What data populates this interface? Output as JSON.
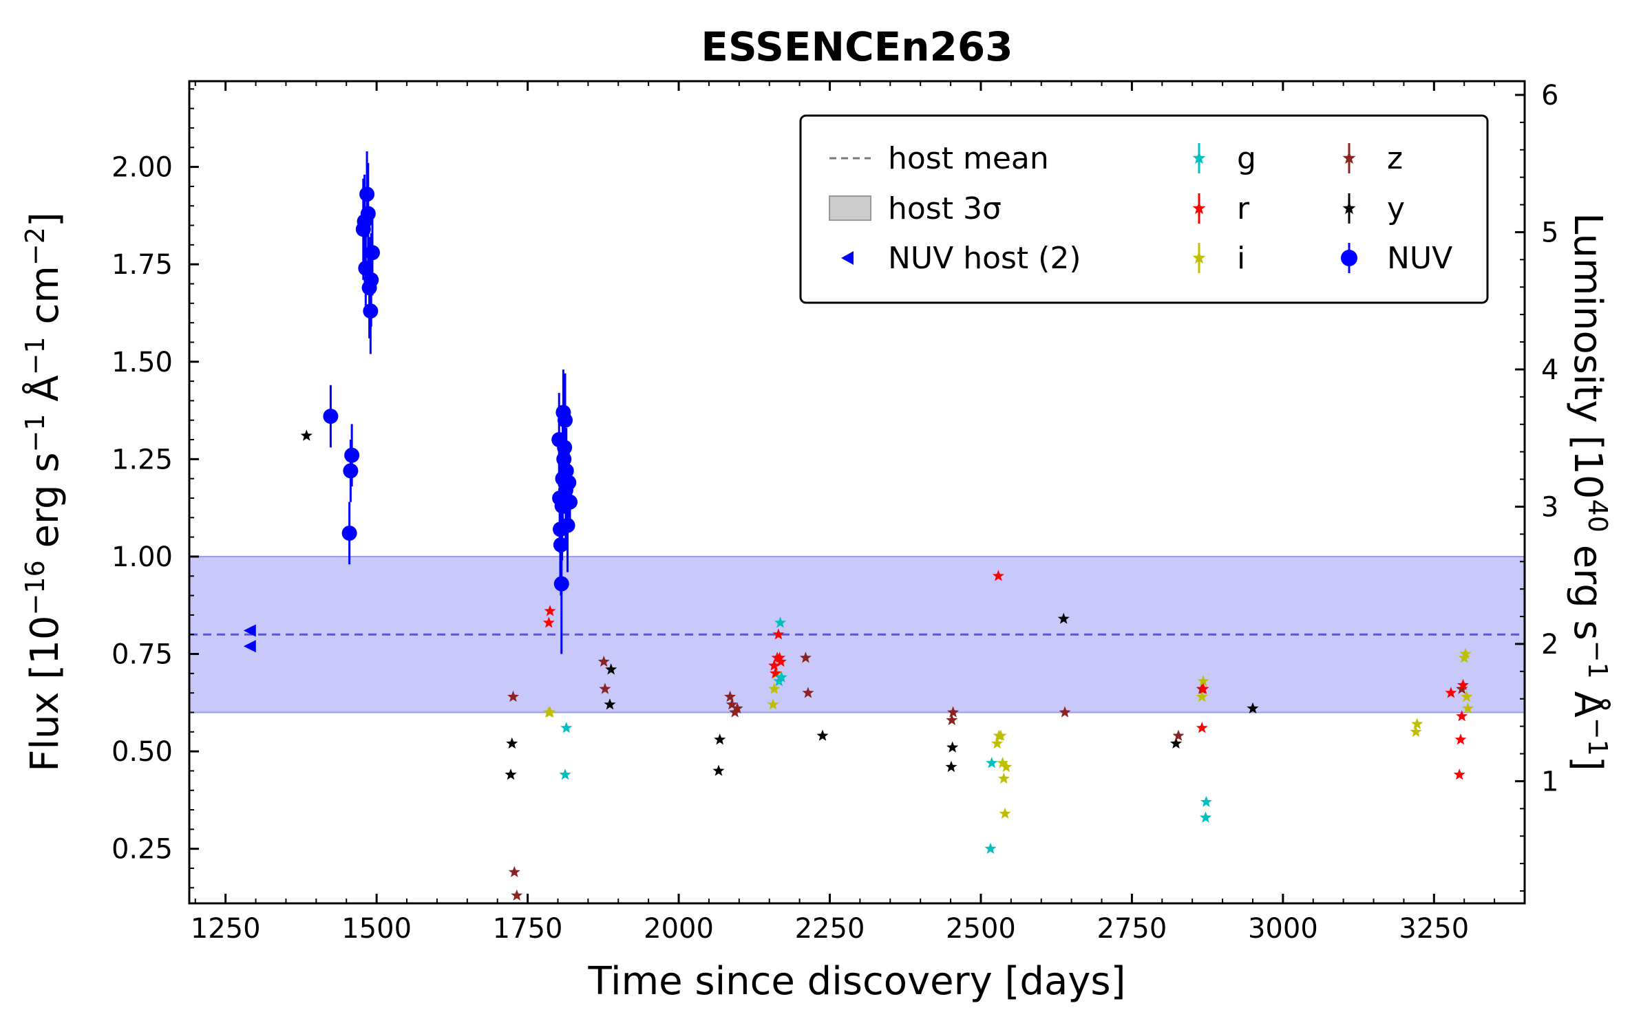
{
  "chart_data": {
    "type": "scatter",
    "title": "ESSENCEn263",
    "xlabel": "Time since discovery [days]",
    "ylabel": "Flux [10^-16 erg s^-1 Å^-1 cm^-2]",
    "ylabel_right": "Luminosity [10^40 erg s^-1 Å^-1]",
    "xlim": [
      1190,
      3400
    ],
    "ylim": [
      0.11,
      2.22
    ],
    "ylim_right": [
      0.11,
      6.1
    ],
    "x_ticks": [
      "1250",
      "1500",
      "1750",
      "2000",
      "2250",
      "2500",
      "2750",
      "3000",
      "3250"
    ],
    "y_ticks": [
      "0.25",
      "0.50",
      "0.75",
      "1.00",
      "1.25",
      "1.50",
      "1.75",
      "2.00"
    ],
    "y_ticks_right": [
      "1",
      "2",
      "3",
      "4",
      "5",
      "6"
    ],
    "grid": false,
    "legend_position": "top-right",
    "host": {
      "mean": 0.8,
      "band": [
        0.6,
        1.0
      ],
      "band_color": "#c8c8fa",
      "line_color": "#5555e6"
    },
    "legend": {
      "host_mean": "host mean",
      "host_band": "host 3σ",
      "nuv_host": "NUV host (2)",
      "g": "g",
      "r": "r",
      "i": "i",
      "z": "z",
      "y": "y",
      "nuv": "NUV"
    },
    "series": [
      {
        "name": "NUV host (2)",
        "color": "#0000ff",
        "marker": "triangle-left",
        "x": [
          1290,
          1290
        ],
        "y": [
          0.81,
          0.77
        ]
      },
      {
        "name": "NUV",
        "color": "#0000ff",
        "marker": "circle",
        "x": [
          1424,
          1455,
          1457,
          1459,
          1478,
          1480,
          1482,
          1484,
          1486,
          1488,
          1490,
          1491,
          1493,
          1802,
          1803,
          1804,
          1805,
          1806,
          1807,
          1808,
          1809,
          1810,
          1811,
          1812,
          1813,
          1814,
          1815,
          1816,
          1818,
          1820
        ],
        "y": [
          1.36,
          1.06,
          1.22,
          1.26,
          1.84,
          1.86,
          1.74,
          1.93,
          1.88,
          1.69,
          1.63,
          1.71,
          1.78,
          1.3,
          1.15,
          1.07,
          1.03,
          0.93,
          1.13,
          1.2,
          1.37,
          1.25,
          1.28,
          1.35,
          1.17,
          1.22,
          1.14,
          1.08,
          1.19,
          1.14
        ],
        "yerr": [
          0.08,
          0.08,
          0.08,
          0.08,
          0.13,
          0.12,
          0.12,
          0.11,
          0.13,
          0.13,
          0.11,
          0.12,
          0.11,
          0.12,
          0.14,
          0.14,
          0.13,
          0.18,
          0.14,
          0.14,
          0.11,
          0.14,
          0.12,
          0.12,
          0.14,
          0.11,
          0.12,
          0.12,
          0.09,
          0.07
        ]
      },
      {
        "name": "g",
        "color": "#00bfbf",
        "marker": "star",
        "x": [
          1812,
          1814,
          2166,
          2168,
          2170,
          2516,
          2518,
          2872,
          2873
        ],
        "y": [
          0.44,
          0.56,
          0.68,
          0.83,
          0.69,
          0.25,
          0.47,
          0.33,
          0.37
        ]
      },
      {
        "name": "r",
        "color": "#ff0000",
        "marker": "star",
        "x": [
          1785,
          1787,
          2158,
          2160,
          2163,
          2165,
          2167,
          2169,
          2529,
          2866,
          2868,
          3278,
          3292,
          3294,
          3296,
          3298
        ],
        "y": [
          0.83,
          0.86,
          0.72,
          0.7,
          0.74,
          0.8,
          0.74,
          0.73,
          0.95,
          0.56,
          0.66,
          0.65,
          0.44,
          0.53,
          0.59,
          0.67
        ]
      },
      {
        "name": "i",
        "color": "#bfbf00",
        "marker": "star",
        "x": [
          1785,
          1787,
          2156,
          2158,
          2162,
          2527,
          2530,
          2533,
          2536,
          2538,
          2540,
          2542,
          2866,
          2868,
          3220,
          3222,
          3300,
          3302,
          3304,
          3306
        ],
        "y": [
          0.6,
          0.6,
          0.62,
          0.66,
          0.7,
          0.52,
          0.54,
          0.54,
          0.47,
          0.43,
          0.34,
          0.46,
          0.64,
          0.68,
          0.55,
          0.57,
          0.74,
          0.75,
          0.64,
          0.61
        ]
      },
      {
        "name": "z",
        "color": "#8b2323",
        "marker": "star",
        "x": [
          1726,
          1728,
          1732,
          1876,
          1878,
          2085,
          2088,
          2093,
          2097,
          2210,
          2214,
          2452,
          2454,
          2639,
          2827,
          2866,
          3296
        ],
        "y": [
          0.64,
          0.19,
          0.13,
          0.73,
          0.66,
          0.64,
          0.62,
          0.6,
          0.61,
          0.74,
          0.65,
          0.58,
          0.6,
          0.6,
          0.54,
          0.66,
          0.66
        ]
      },
      {
        "name": "y",
        "color": "#000000",
        "marker": "star",
        "x": [
          1384,
          1722,
          1724,
          1886,
          1888,
          2066,
          2068,
          2238,
          2451,
          2453,
          2637,
          2823,
          2950
        ],
        "y": [
          1.31,
          0.44,
          0.52,
          0.62,
          0.71,
          0.45,
          0.53,
          0.54,
          0.46,
          0.51,
          0.84,
          0.52,
          0.61
        ]
      }
    ]
  }
}
